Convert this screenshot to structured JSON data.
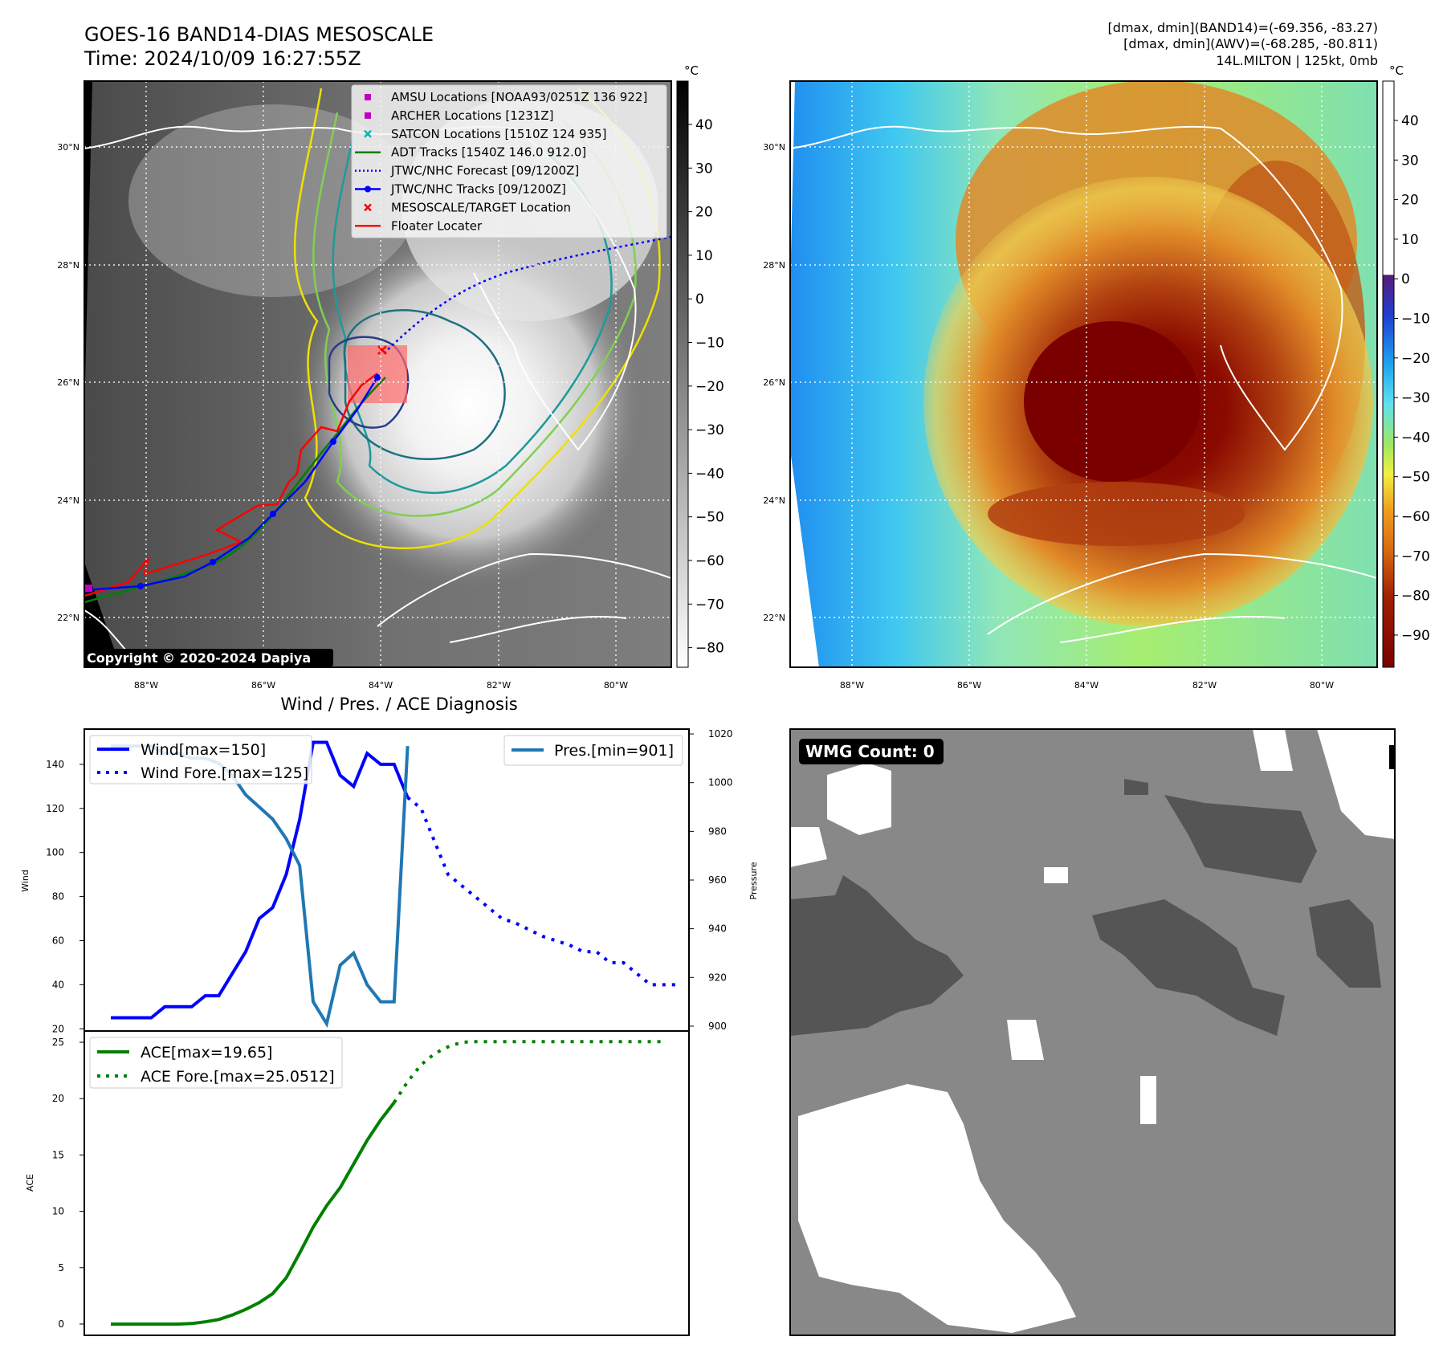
{
  "header": {
    "title": "GOES-16 BAND14-DIAS MESOSCALE",
    "time": "Time: 2024/10/09 16:27:55Z",
    "stats_band14": "[dmax, dmin](BAND14)=(-69.356, -83.27)",
    "stats_awv": "[dmax, dmin](AWV)=(-68.285, -80.811)",
    "storm_info": "14L.MILTON | 125kt, 0mb"
  },
  "maps": {
    "lat_ticks": [
      "30°N",
      "28°N",
      "26°N",
      "24°N",
      "22°N"
    ],
    "lon_ticks": [
      "88°W",
      "86°W",
      "84°W",
      "82°W",
      "80°W"
    ],
    "copyright": "Copyright © 2020-2024 Dapiya",
    "colorbar_unit": "°C",
    "gray_colorbar_ticks": [
      "40",
      "30",
      "20",
      "10",
      "0",
      "−10",
      "−20",
      "−30",
      "−40",
      "−50",
      "−60",
      "−70",
      "−80"
    ],
    "color_colorbar_ticks": [
      "40",
      "30",
      "20",
      "10",
      "0",
      "−10",
      "−20",
      "−30",
      "−40",
      "−50",
      "−60",
      "−70",
      "−80",
      "−90"
    ],
    "legend": [
      {
        "label": "AMSU Locations [NOAA93/0251Z 136 922]",
        "marker": "square",
        "color": "#c000c0"
      },
      {
        "label": "ARCHER Locations [1231Z]",
        "marker": "square",
        "color": "#c000c0"
      },
      {
        "label": "SATCON Locations [1510Z 124 935]",
        "marker": "x",
        "color": "#00b4b4"
      },
      {
        "label": "ADT Tracks [1540Z 146.0 912.0]",
        "marker": "line",
        "color": "#008000"
      },
      {
        "label": "JTWC/NHC Forecast [09/1200Z]",
        "marker": "dotted",
        "color": "#0000ff"
      },
      {
        "label": "JTWC/NHC Tracks [09/1200Z]",
        "marker": "line-dot",
        "color": "#0000ff"
      },
      {
        "label": "MESOSCALE/TARGET Location",
        "marker": "x",
        "color": "#ff0000"
      },
      {
        "label": "Floater Locater",
        "marker": "line",
        "color": "#ff0000"
      }
    ]
  },
  "diagnosis": {
    "title": "Wind / Pres. / ACE Diagnosis",
    "wind_ylabel": "Wind",
    "pres_ylabel": "Pressure",
    "ace_ylabel": "ACE",
    "wind_ticks": [
      "140",
      "120",
      "100",
      "80",
      "60",
      "40",
      "20"
    ],
    "pres_ticks": [
      "1020",
      "1000",
      "980",
      "960",
      "940",
      "920",
      "900"
    ],
    "ace_ticks": [
      "25",
      "20",
      "15",
      "10",
      "5",
      "0"
    ],
    "legend_wind": "Wind[max=150]",
    "legend_wind_fore": "Wind Fore.[max=125]",
    "legend_pres": "Pres.[min=901]",
    "legend_ace": "ACE[max=19.65]",
    "legend_ace_fore": "ACE Fore.[max=25.0512]"
  },
  "wmg": {
    "label": "WMG Count: 0"
  },
  "colors": {
    "wind": "#0000ff",
    "pressure": "#1f77b4",
    "ace": "#008000"
  },
  "chart_data": [
    {
      "type": "line",
      "title": "Wind / Pres. / ACE Diagnosis",
      "ylabel": "Wind",
      "ylim": [
        19,
        156
      ],
      "series": [
        {
          "name": "Wind[max=150]",
          "values": [
            25,
            25,
            25,
            25,
            30,
            30,
            30,
            35,
            35,
            45,
            55,
            70,
            75,
            90,
            115,
            150,
            150,
            135,
            130,
            145,
            140,
            140,
            125
          ]
        },
        {
          "name": "Wind Fore.[max=125]",
          "values": [
            125,
            120,
            105,
            90,
            85,
            80,
            75,
            70,
            68,
            65,
            62,
            60,
            58,
            55,
            55,
            50,
            50,
            45,
            40,
            40,
            40
          ]
        }
      ]
    },
    {
      "type": "line",
      "ylabel": "Pressure",
      "ylim": [
        898,
        1022
      ],
      "series": [
        {
          "name": "Pres.[min=901]",
          "values": [
            1015,
            1015,
            1015,
            1015,
            1012,
            1012,
            1010,
            1010,
            1008,
            1003,
            995,
            990,
            985,
            977,
            966,
            910,
            901,
            925,
            930,
            917,
            910,
            910,
            1015
          ]
        }
      ]
    },
    {
      "type": "line",
      "ylabel": "ACE",
      "ylim": [
        -1,
        26
      ],
      "series": [
        {
          "name": "ACE[max=19.65]",
          "values": [
            0,
            0,
            0,
            0,
            0,
            0,
            0.05,
            0.2,
            0.4,
            0.8,
            1.3,
            1.9,
            2.7,
            4.1,
            6.3,
            8.6,
            10.5,
            12.1,
            14.2,
            16.3,
            18.1,
            19.65
          ]
        },
        {
          "name": "ACE Fore.[max=25.0512]",
          "values": [
            19.65,
            21.5,
            23.0,
            24.0,
            24.6,
            25.0,
            25.05,
            25.05,
            25.05,
            25.05,
            25.05,
            25.05,
            25.05,
            25.05,
            25.05,
            25.05,
            25.05,
            25.05,
            25.05,
            25.05,
            25.05
          ]
        }
      ]
    }
  ]
}
